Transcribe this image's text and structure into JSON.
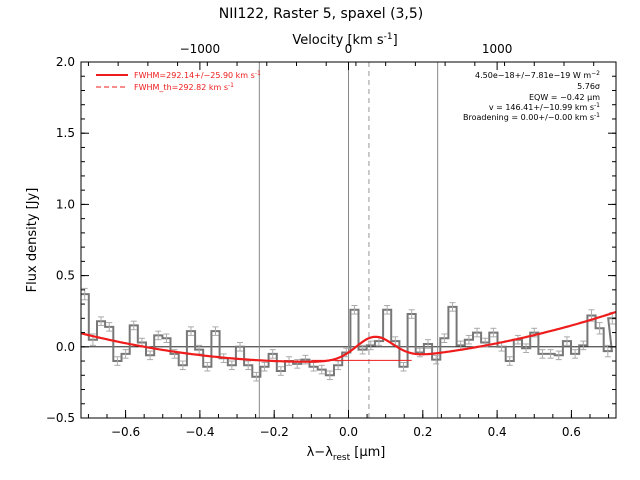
{
  "chart_data": {
    "type": "line",
    "title": "NII122, Raster 5, spaxel (3,5)",
    "xlabel_main": "λ−λ",
    "xlabel_sub": "rest",
    "xlabel_unit": " [μm]",
    "ylabel": "Flux density [Jy]",
    "top_axis_label": "Velocity [km s",
    "top_axis_label_sup": "-1",
    "top_axis_label_end": "]",
    "xlim": [
      -0.72,
      0.72
    ],
    "ylim": [
      -0.5,
      2.0
    ],
    "x_ticks": [
      {
        "value": -0.6,
        "label": "−0.6"
      },
      {
        "value": -0.4,
        "label": "−0.4"
      },
      {
        "value": -0.2,
        "label": "−0.2"
      },
      {
        "value": 0.0,
        "label": "0.0"
      },
      {
        "value": 0.2,
        "label": "0.2"
      },
      {
        "value": 0.4,
        "label": "0.4"
      },
      {
        "value": 0.6,
        "label": "0.6"
      }
    ],
    "y_ticks": [
      {
        "value": -0.5,
        "label": "−0.5"
      },
      {
        "value": 0.0,
        "label": "0.0"
      },
      {
        "value": 0.5,
        "label": "0.5"
      },
      {
        "value": 1.0,
        "label": "1.0"
      },
      {
        "value": 1.5,
        "label": "1.5"
      },
      {
        "value": 2.0,
        "label": "2.0"
      }
    ],
    "top_ticks": [
      {
        "value": -0.4,
        "label": "−1000"
      },
      {
        "value": 0.0,
        "label": "0"
      },
      {
        "value": 0.4,
        "label": "1000"
      }
    ],
    "vertical_lines": [
      -0.24,
      0.0,
      0.24
    ],
    "dashed_vertical_line": 0.055,
    "baseline_segment": {
      "x": [
        -0.1,
        0.17
      ],
      "y": -0.095
    },
    "legend": [
      {
        "label": "FWHM=292.14+/−25.90 km s",
        "sup": "-1",
        "style": "solid"
      },
      {
        "label": "FWHM_th=292.82 km s",
        "sup": "-1",
        "style": "dashed"
      }
    ],
    "annotations": [
      {
        "text": "4.50e−18+/−7.81e−19 W m",
        "sup": "−2"
      },
      {
        "text": "5.76σ",
        "sup": ""
      },
      {
        "text": "EQW = −0.42 μm",
        "sup": ""
      },
      {
        "text": "v = 146.41+/−10.99 km s",
        "sup": "-1"
      },
      {
        "text": "Broadening = 0.00+/−0.00 km s",
        "sup": "-1"
      }
    ],
    "series": [
      {
        "name": "spectrum",
        "color": "#777777",
        "x": [
          -0.71,
          -0.688,
          -0.666,
          -0.644,
          -0.622,
          -0.6,
          -0.578,
          -0.556,
          -0.534,
          -0.512,
          -0.49,
          -0.468,
          -0.446,
          -0.424,
          -0.402,
          -0.38,
          -0.358,
          -0.336,
          -0.314,
          -0.292,
          -0.27,
          -0.248,
          -0.226,
          -0.204,
          -0.182,
          -0.16,
          -0.138,
          -0.116,
          -0.094,
          -0.072,
          -0.05,
          -0.028,
          -0.006,
          0.016,
          0.038,
          0.06,
          0.082,
          0.104,
          0.126,
          0.148,
          0.17,
          0.192,
          0.214,
          0.236,
          0.258,
          0.28,
          0.302,
          0.324,
          0.346,
          0.368,
          0.39,
          0.412,
          0.434,
          0.456,
          0.478,
          0.5,
          0.522,
          0.544,
          0.566,
          0.588,
          0.61,
          0.632,
          0.654,
          0.676,
          0.698,
          0.71
        ],
        "y": [
          0.37,
          0.05,
          0.18,
          0.14,
          -0.1,
          -0.05,
          0.15,
          0.03,
          -0.06,
          0.08,
          0.06,
          -0.05,
          -0.13,
          0.11,
          -0.02,
          -0.14,
          0.11,
          -0.08,
          -0.13,
          0.0,
          -0.13,
          -0.21,
          -0.14,
          -0.05,
          -0.17,
          -0.1,
          -0.12,
          -0.09,
          -0.14,
          -0.16,
          -0.2,
          -0.13,
          -0.04,
          0.26,
          -0.02,
          0.01,
          0.04,
          0.26,
          0.04,
          -0.14,
          0.23,
          -0.04,
          0.02,
          -0.09,
          0.06,
          0.28,
          0.01,
          0.05,
          0.1,
          0.03,
          0.1,
          0.0,
          -0.1,
          0.05,
          -0.01,
          0.1,
          -0.05,
          -0.05,
          -0.06,
          0.04,
          -0.05,
          0.01,
          0.22,
          0.13,
          -0.03,
          0.2
        ],
        "err": [
          0.04,
          0.04,
          0.03,
          0.03,
          0.03,
          0.03,
          0.03,
          0.03,
          0.03,
          0.03,
          0.03,
          0.03,
          0.03,
          0.03,
          0.03,
          0.03,
          0.03,
          0.03,
          0.03,
          0.03,
          0.03,
          0.03,
          0.03,
          0.03,
          0.03,
          0.03,
          0.03,
          0.03,
          0.03,
          0.03,
          0.03,
          0.03,
          0.03,
          0.03,
          0.03,
          0.03,
          0.03,
          0.03,
          0.03,
          0.03,
          0.03,
          0.03,
          0.03,
          0.03,
          0.03,
          0.03,
          0.03,
          0.03,
          0.03,
          0.03,
          0.03,
          0.03,
          0.03,
          0.03,
          0.03,
          0.03,
          0.03,
          0.03,
          0.03,
          0.03,
          0.03,
          0.03,
          0.04,
          0.04,
          0.04,
          0.04
        ]
      },
      {
        "name": "fit",
        "color": "#ee1c1c",
        "model": {
          "baseline": {
            "x0": -0.1,
            "a": 0.52,
            "c": -0.105
          },
          "gaussian": {
            "center": 0.07,
            "sigma": 0.05,
            "amplitude": 0.16
          }
        }
      }
    ]
  }
}
